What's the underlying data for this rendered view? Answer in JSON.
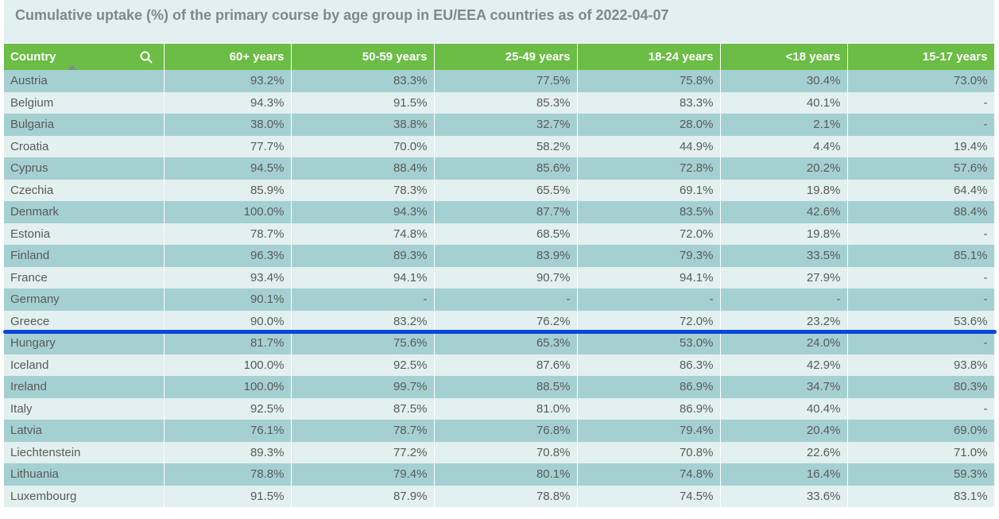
{
  "title": "Cumulative uptake (%) of the primary course by age group in EU/EEA countries as of 2022-04-07",
  "colors": {
    "header": "#6bbd45",
    "row_odd": "#a5d0d1",
    "row_even": "#e2f0ef",
    "marker": "#0a47d8"
  },
  "chart_data": {
    "type": "table",
    "columns": [
      "Country",
      "60+ years",
      "50-59 years",
      "25-49 years",
      "18-24 years",
      "<18 years",
      "15-17 years"
    ],
    "rows": [
      [
        "Austria",
        "93.2%",
        "83.3%",
        "77.5%",
        "75.8%",
        "30.4%",
        "73.0%"
      ],
      [
        "Belgium",
        "94.3%",
        "91.5%",
        "85.3%",
        "83.3%",
        "40.1%",
        "-"
      ],
      [
        "Bulgaria",
        "38.0%",
        "38.8%",
        "32.7%",
        "28.0%",
        "2.1%",
        "-"
      ],
      [
        "Croatia",
        "77.7%",
        "70.0%",
        "58.2%",
        "44.9%",
        "4.4%",
        "19.4%"
      ],
      [
        "Cyprus",
        "94.5%",
        "88.4%",
        "85.6%",
        "72.8%",
        "20.2%",
        "57.6%"
      ],
      [
        "Czechia",
        "85.9%",
        "78.3%",
        "65.5%",
        "69.1%",
        "19.8%",
        "64.4%"
      ],
      [
        "Denmark",
        "100.0%",
        "94.3%",
        "87.7%",
        "83.5%",
        "42.6%",
        "88.4%"
      ],
      [
        "Estonia",
        "78.7%",
        "74.8%",
        "68.5%",
        "72.0%",
        "19.8%",
        "-"
      ],
      [
        "Finland",
        "96.3%",
        "89.3%",
        "83.9%",
        "79.3%",
        "33.5%",
        "85.1%"
      ],
      [
        "France",
        "93.4%",
        "94.1%",
        "90.7%",
        "94.1%",
        "27.9%",
        "-"
      ],
      [
        "Germany",
        "90.1%",
        "-",
        "-",
        "-",
        "-",
        "-"
      ],
      [
        "Greece",
        "90.0%",
        "83.2%",
        "76.2%",
        "72.0%",
        "23.2%",
        "53.6%"
      ],
      [
        "Hungary",
        "81.7%",
        "75.6%",
        "65.3%",
        "53.0%",
        "24.0%",
        "-"
      ],
      [
        "Iceland",
        "100.0%",
        "92.5%",
        "87.6%",
        "86.3%",
        "42.9%",
        "93.8%"
      ],
      [
        "Ireland",
        "100.0%",
        "99.7%",
        "88.5%",
        "86.9%",
        "34.7%",
        "80.3%"
      ],
      [
        "Italy",
        "92.5%",
        "87.5%",
        "81.0%",
        "86.9%",
        "40.4%",
        "-"
      ],
      [
        "Latvia",
        "76.1%",
        "78.7%",
        "76.8%",
        "79.4%",
        "20.4%",
        "69.0%"
      ],
      [
        "Liechtenstein",
        "89.3%",
        "77.2%",
        "70.8%",
        "70.8%",
        "22.6%",
        "71.0%"
      ],
      [
        "Lithuania",
        "78.8%",
        "79.4%",
        "80.1%",
        "74.8%",
        "16.4%",
        "59.3%"
      ],
      [
        "Luxembourg",
        "91.5%",
        "87.9%",
        "78.8%",
        "74.5%",
        "33.6%",
        "83.1%"
      ]
    ],
    "sort": {
      "column": "Country",
      "direction": "ascending"
    },
    "highlight": {
      "after_row": "Greece"
    }
  }
}
